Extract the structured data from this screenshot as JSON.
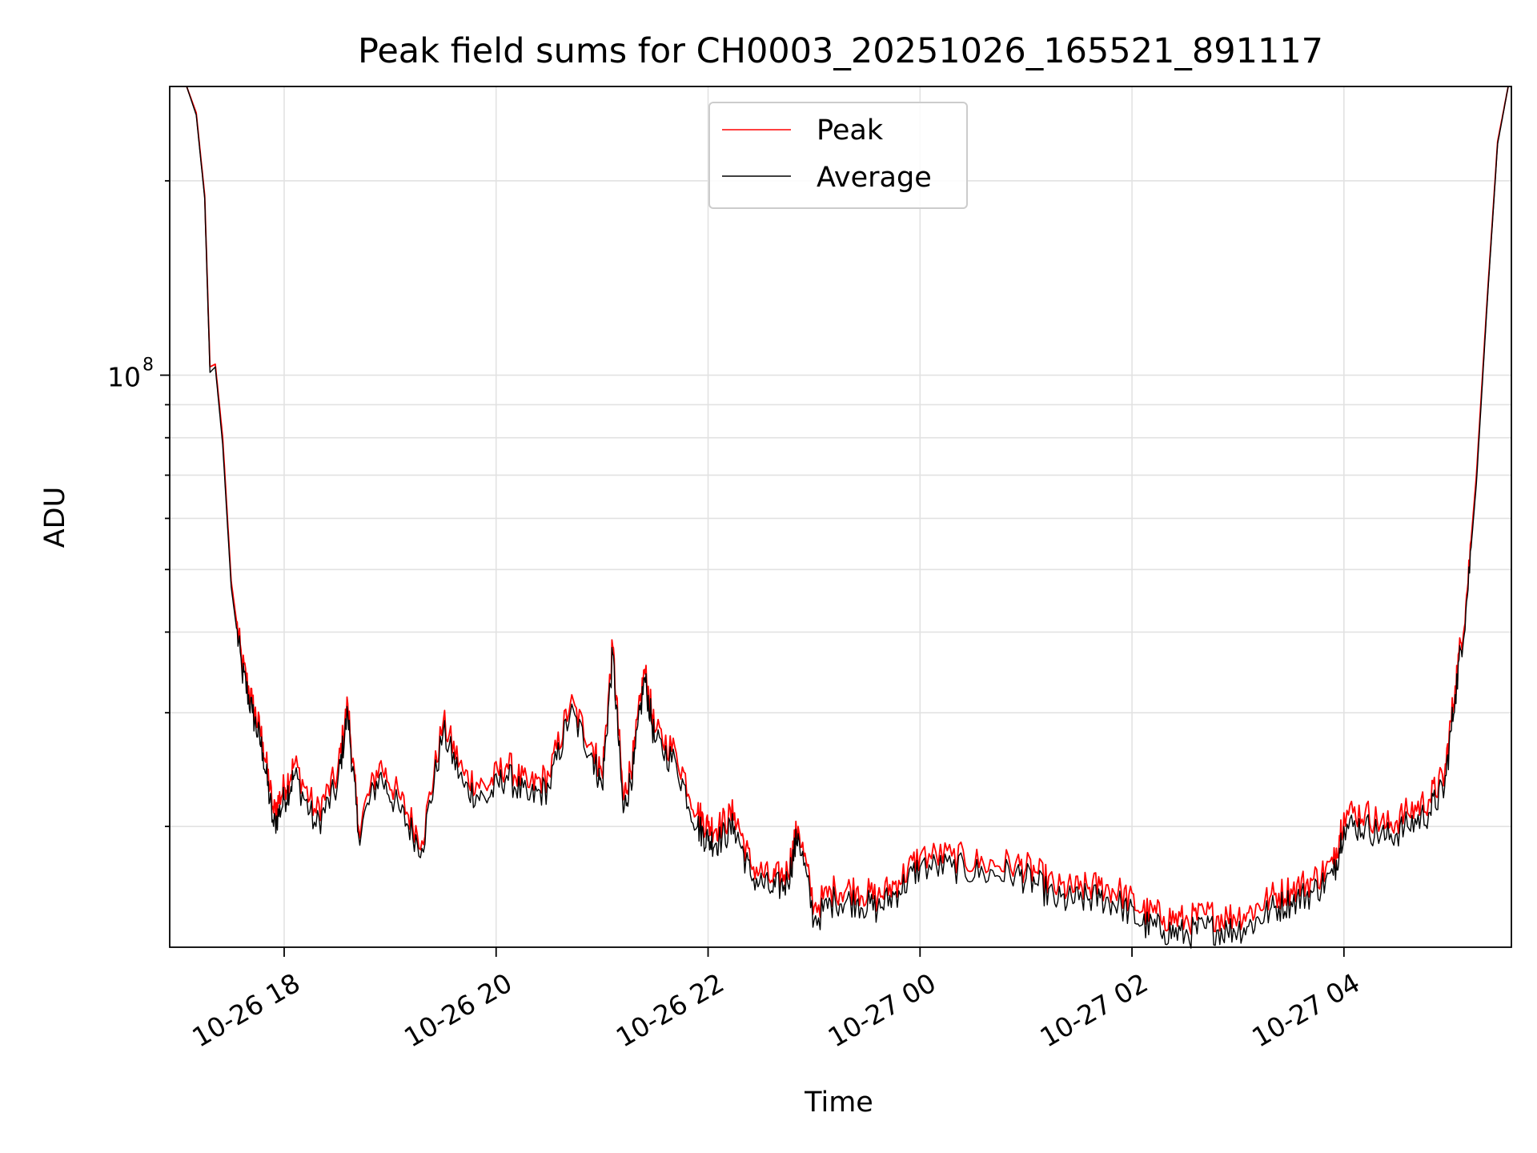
{
  "chart_data": {
    "type": "line",
    "title": "Peak field sums for CH0003_20251026_165521_891117",
    "xlabel": "Time",
    "ylabel": "ADU",
    "yscale": "log",
    "grid": true,
    "legend_position": "upper-center",
    "x_ticks": [
      {
        "label": "10-26 18",
        "hours": 18
      },
      {
        "label": "10-26 20",
        "hours": 20
      },
      {
        "label": "10-26 22",
        "hours": 22
      },
      {
        "label": "10-27 00",
        "hours": 24
      },
      {
        "label": "10-27 02",
        "hours": 26
      },
      {
        "label": "10-27 04",
        "hours": 28
      }
    ],
    "xlim_hours": [
      16.92,
      29.58
    ],
    "ylim": [
      13000000,
      280000000
    ],
    "y_ticks": [
      {
        "base": "10",
        "exp": "8",
        "value": 100000000
      }
    ],
    "y_minor_ticks": [
      20000000,
      30000000,
      40000000,
      50000000,
      60000000,
      70000000,
      80000000,
      90000000,
      200000000
    ],
    "series": [
      {
        "name": "Peak",
        "color": "#ff0000",
        "points": [
          [
            17.08,
            280000000
          ],
          [
            17.17,
            255000000
          ],
          [
            17.25,
            190000000
          ],
          [
            17.3,
            103000000
          ],
          [
            17.35,
            104000000
          ],
          [
            17.42,
            80000000
          ],
          [
            17.5,
            48000000
          ],
          [
            17.6,
            36000000
          ],
          [
            17.7,
            31000000
          ],
          [
            17.8,
            27000000
          ],
          [
            17.9,
            21000000
          ],
          [
            18.0,
            23000000
          ],
          [
            18.1,
            25000000
          ],
          [
            18.3,
            21000000
          ],
          [
            18.5,
            24000000
          ],
          [
            18.6,
            31000000
          ],
          [
            18.7,
            20000000
          ],
          [
            18.9,
            25000000
          ],
          [
            19.1,
            22000000
          ],
          [
            19.3,
            19000000
          ],
          [
            19.5,
            29000000
          ],
          [
            19.7,
            24000000
          ],
          [
            19.9,
            23000000
          ],
          [
            20.1,
            25000000
          ],
          [
            20.3,
            23000000
          ],
          [
            20.5,
            24000000
          ],
          [
            20.7,
            31000000
          ],
          [
            20.9,
            27000000
          ],
          [
            21.0,
            24000000
          ],
          [
            21.1,
            38000000
          ],
          [
            21.2,
            22000000
          ],
          [
            21.3,
            26000000
          ],
          [
            21.4,
            35000000
          ],
          [
            21.5,
            28000000
          ],
          [
            21.7,
            26000000
          ],
          [
            21.9,
            21000000
          ],
          [
            22.0,
            20000000
          ],
          [
            22.1,
            20000000
          ],
          [
            22.25,
            21000000
          ],
          [
            22.4,
            17500000
          ],
          [
            22.6,
            16500000
          ],
          [
            22.75,
            17000000
          ],
          [
            22.85,
            20000000
          ],
          [
            23.0,
            15000000
          ],
          [
            23.2,
            16000000
          ],
          [
            23.4,
            16000000
          ],
          [
            23.6,
            15500000
          ],
          [
            23.8,
            16500000
          ],
          [
            24.0,
            18000000
          ],
          [
            24.3,
            18000000
          ],
          [
            24.6,
            17500000
          ],
          [
            24.9,
            17500000
          ],
          [
            25.1,
            17000000
          ],
          [
            25.3,
            16000000
          ],
          [
            25.5,
            16000000
          ],
          [
            25.7,
            16200000
          ],
          [
            25.9,
            15800000
          ],
          [
            26.1,
            14800000
          ],
          [
            26.3,
            14500000
          ],
          [
            26.5,
            14300000
          ],
          [
            26.7,
            14600000
          ],
          [
            26.9,
            14500000
          ],
          [
            27.1,
            14700000
          ],
          [
            27.3,
            15500000
          ],
          [
            27.5,
            16000000
          ],
          [
            27.7,
            16500000
          ],
          [
            27.9,
            17500000
          ],
          [
            28.0,
            21000000
          ],
          [
            28.2,
            21000000
          ],
          [
            28.4,
            20000000
          ],
          [
            28.6,
            21000000
          ],
          [
            28.8,
            22000000
          ],
          [
            28.95,
            24000000
          ],
          [
            29.05,
            33000000
          ],
          [
            29.15,
            44000000
          ],
          [
            29.25,
            70000000
          ],
          [
            29.35,
            130000000
          ],
          [
            29.45,
            230000000
          ],
          [
            29.55,
            280000000
          ]
        ]
      },
      {
        "name": "Average",
        "color": "#000000",
        "points": [
          [
            17.08,
            280000000
          ],
          [
            17.17,
            253000000
          ],
          [
            17.25,
            188000000
          ],
          [
            17.3,
            101000000
          ],
          [
            17.35,
            103000000
          ],
          [
            17.42,
            78000000
          ],
          [
            17.5,
            47000000
          ],
          [
            17.6,
            35000000
          ],
          [
            17.7,
            30000000
          ],
          [
            17.8,
            26000000
          ],
          [
            17.9,
            20000000
          ],
          [
            18.0,
            22000000
          ],
          [
            18.1,
            24000000
          ],
          [
            18.3,
            20000000
          ],
          [
            18.5,
            23000000
          ],
          [
            18.6,
            30000000
          ],
          [
            18.7,
            19500000
          ],
          [
            18.9,
            24000000
          ],
          [
            19.1,
            21000000
          ],
          [
            19.3,
            18500000
          ],
          [
            19.5,
            28000000
          ],
          [
            19.7,
            23000000
          ],
          [
            19.9,
            22000000
          ],
          [
            20.1,
            24000000
          ],
          [
            20.3,
            22000000
          ],
          [
            20.5,
            23000000
          ],
          [
            20.7,
            30000000
          ],
          [
            20.9,
            26000000
          ],
          [
            21.0,
            23000000
          ],
          [
            21.1,
            37000000
          ],
          [
            21.2,
            21000000
          ],
          [
            21.3,
            25000000
          ],
          [
            21.4,
            34000000
          ],
          [
            21.5,
            27000000
          ],
          [
            21.7,
            25000000
          ],
          [
            21.9,
            20000000
          ],
          [
            22.0,
            19000000
          ],
          [
            22.1,
            19000000
          ],
          [
            22.25,
            20000000
          ],
          [
            22.4,
            16800000
          ],
          [
            22.6,
            15900000
          ],
          [
            22.75,
            16400000
          ],
          [
            22.85,
            19500000
          ],
          [
            23.0,
            14300000
          ],
          [
            23.2,
            15400000
          ],
          [
            23.4,
            15300000
          ],
          [
            23.6,
            14900000
          ],
          [
            23.8,
            15900000
          ],
          [
            24.0,
            17300000
          ],
          [
            24.3,
            17300000
          ],
          [
            24.6,
            16900000
          ],
          [
            24.9,
            16900000
          ],
          [
            25.1,
            16300000
          ],
          [
            25.3,
            15300000
          ],
          [
            25.5,
            15400000
          ],
          [
            25.7,
            15500000
          ],
          [
            25.9,
            15100000
          ],
          [
            26.1,
            14100000
          ],
          [
            26.3,
            13800000
          ],
          [
            26.5,
            13600000
          ],
          [
            26.7,
            13900000
          ],
          [
            26.9,
            13800000
          ],
          [
            27.1,
            14000000
          ],
          [
            27.3,
            14800000
          ],
          [
            27.5,
            15300000
          ],
          [
            27.7,
            15800000
          ],
          [
            27.9,
            16800000
          ],
          [
            28.0,
            20000000
          ],
          [
            28.2,
            20000000
          ],
          [
            28.4,
            19200000
          ],
          [
            28.6,
            20000000
          ],
          [
            28.8,
            21000000
          ],
          [
            28.95,
            23000000
          ],
          [
            29.05,
            32000000
          ],
          [
            29.15,
            43000000
          ],
          [
            29.25,
            68000000
          ],
          [
            29.35,
            128000000
          ],
          [
            29.45,
            228000000
          ],
          [
            29.55,
            280000000
          ]
        ]
      }
    ]
  }
}
